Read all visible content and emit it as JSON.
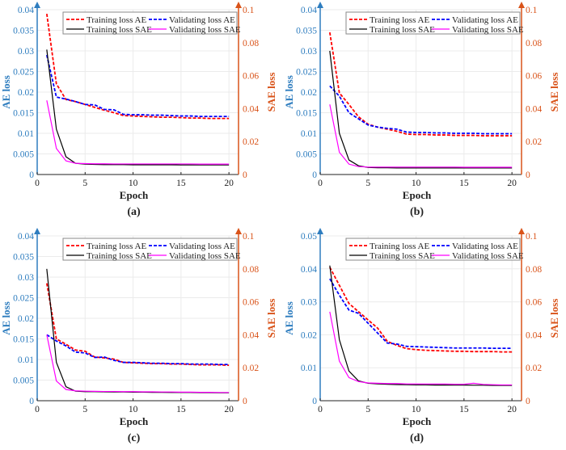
{
  "colors": {
    "left_axis": "#2e7dbf",
    "right_axis": "#d95319",
    "train_ae": "#ff0000",
    "val_ae": "#0000ff",
    "train_sae": "#000000",
    "val_sae": "#ff00ff"
  },
  "chart_data": [
    {
      "type": "line",
      "caption": "(a)",
      "xlabel": "Epoch",
      "ylabel": "AE loss",
      "y2label": "SAE loss",
      "xlim": [
        0,
        21
      ],
      "xticks": [
        "0",
        "5",
        "10",
        "15",
        "20"
      ],
      "ylim": [
        0,
        0.04
      ],
      "yticks": [
        "0",
        "0.005",
        "0.01",
        "0.015",
        "0.02",
        "0.025",
        "0.03",
        "0.035",
        "0.04"
      ],
      "y2lim": [
        0,
        0.1
      ],
      "y2ticks": [
        "0",
        "0.02",
        "0.04",
        "0.06",
        "0.08",
        "0.1"
      ],
      "grid": true,
      "legend_position": "top-right",
      "x": [
        1,
        2,
        3,
        4,
        5,
        6,
        7,
        8,
        9,
        10,
        11,
        12,
        13,
        14,
        15,
        16,
        17,
        18,
        19,
        20
      ],
      "series": [
        {
          "name": "Training loss AE",
          "axis": "left",
          "style": "dashed",
          "values": [
            0.039,
            0.022,
            0.0182,
            0.0177,
            0.017,
            0.0163,
            0.0156,
            0.015,
            0.0143,
            0.0142,
            0.0141,
            0.014,
            0.0139,
            0.0139,
            0.0138,
            0.0137,
            0.0137,
            0.0136,
            0.0136,
            0.0136
          ]
        },
        {
          "name": "Validating loss AE",
          "axis": "left",
          "style": "dashed",
          "values": [
            0.029,
            0.0188,
            0.0183,
            0.0177,
            0.017,
            0.0169,
            0.0158,
            0.0157,
            0.0146,
            0.0145,
            0.0145,
            0.0144,
            0.0144,
            0.0143,
            0.0142,
            0.0142,
            0.0141,
            0.0141,
            0.0141,
            0.0141
          ]
        },
        {
          "name": "Training loss SAE",
          "axis": "right",
          "style": "solid",
          "values": [
            0.0758,
            0.0275,
            0.0108,
            0.0068,
            0.0063,
            0.0061,
            0.006,
            0.006,
            0.006,
            0.0059,
            0.0059,
            0.0059,
            0.0059,
            0.0059,
            0.0058,
            0.0058,
            0.0058,
            0.0058,
            0.0058,
            0.0058
          ]
        },
        {
          "name": "Validating loss SAE",
          "axis": "right",
          "style": "solid",
          "values": [
            0.045,
            0.0158,
            0.0083,
            0.0068,
            0.0066,
            0.0065,
            0.0065,
            0.0064,
            0.0064,
            0.0064,
            0.0064,
            0.0064,
            0.0064,
            0.0064,
            0.0064,
            0.0064,
            0.0063,
            0.0063,
            0.0063,
            0.0063
          ]
        }
      ]
    },
    {
      "type": "line",
      "caption": "(b)",
      "xlabel": "Epoch",
      "ylabel": "AE loss",
      "y2label": "SAE loss",
      "xlim": [
        0,
        21
      ],
      "xticks": [
        "0",
        "5",
        "10",
        "15",
        "20"
      ],
      "ylim": [
        0,
        0.04
      ],
      "yticks": [
        "0",
        "0.005",
        "0.01",
        "0.015",
        "0.02",
        "0.025",
        "0.03",
        "0.035",
        "0.04"
      ],
      "y2lim": [
        0,
        0.1
      ],
      "y2ticks": [
        "0",
        "0.02",
        "0.04",
        "0.06",
        "0.08",
        "0.1"
      ],
      "grid": true,
      "legend_position": "top-right",
      "x": [
        1,
        2,
        3,
        4,
        5,
        6,
        7,
        8,
        9,
        10,
        11,
        12,
        13,
        14,
        15,
        16,
        17,
        18,
        19,
        20
      ],
      "series": [
        {
          "name": "Training loss AE",
          "axis": "left",
          "style": "dashed",
          "values": [
            0.0345,
            0.0198,
            0.017,
            0.014,
            0.0122,
            0.0115,
            0.011,
            0.0105,
            0.0098,
            0.0097,
            0.0097,
            0.0096,
            0.0096,
            0.0095,
            0.0095,
            0.0095,
            0.0094,
            0.0094,
            0.0094,
            0.0094
          ]
        },
        {
          "name": "Validating loss AE",
          "axis": "left",
          "style": "dashed",
          "values": [
            0.0215,
            0.019,
            0.015,
            0.0135,
            0.012,
            0.0115,
            0.0112,
            0.011,
            0.0103,
            0.0102,
            0.0102,
            0.0101,
            0.0101,
            0.01,
            0.01,
            0.01,
            0.0099,
            0.0099,
            0.0099,
            0.0099
          ]
        },
        {
          "name": "Training loss SAE",
          "axis": "right",
          "style": "solid",
          "values": [
            0.075,
            0.025,
            0.0088,
            0.0053,
            0.0043,
            0.0041,
            0.0041,
            0.004,
            0.004,
            0.004,
            0.004,
            0.004,
            0.004,
            0.004,
            0.004,
            0.004,
            0.004,
            0.004,
            0.004,
            0.004
          ]
        },
        {
          "name": "Validating loss SAE",
          "axis": "right",
          "style": "solid",
          "values": [
            0.0425,
            0.0135,
            0.0063,
            0.0048,
            0.0045,
            0.0045,
            0.0045,
            0.0045,
            0.0045,
            0.0045,
            0.0045,
            0.0045,
            0.0045,
            0.0045,
            0.0044,
            0.0044,
            0.0044,
            0.0044,
            0.0044,
            0.0044
          ]
        }
      ]
    },
    {
      "type": "line",
      "caption": "(c)",
      "xlabel": "Epoch",
      "ylabel": "AE loss",
      "y2label": "SAE loss",
      "xlim": [
        0,
        21
      ],
      "xticks": [
        "0",
        "5",
        "10",
        "15",
        "20"
      ],
      "ylim": [
        0,
        0.04
      ],
      "yticks": [
        "0",
        "0.005",
        "0.01",
        "0.015",
        "0.02",
        "0.025",
        "0.03",
        "0.035",
        "0.04"
      ],
      "y2lim": [
        0,
        0.1
      ],
      "y2ticks": [
        "0",
        "0.02",
        "0.04",
        "0.06",
        "0.08",
        "0.1"
      ],
      "grid": true,
      "legend_position": "top-right",
      "x": [
        1,
        2,
        3,
        4,
        5,
        6,
        7,
        8,
        9,
        10,
        11,
        12,
        13,
        14,
        15,
        16,
        17,
        18,
        19,
        20
      ],
      "series": [
        {
          "name": "Training loss AE",
          "axis": "left",
          "style": "dashed",
          "values": [
            0.0285,
            0.015,
            0.0137,
            0.0123,
            0.012,
            0.0106,
            0.0104,
            0.0101,
            0.0093,
            0.0092,
            0.0091,
            0.009,
            0.009,
            0.0089,
            0.0089,
            0.0088,
            0.0087,
            0.0087,
            0.0087,
            0.0086
          ]
        },
        {
          "name": "Validating loss AE",
          "axis": "left",
          "style": "dashed",
          "values": [
            0.016,
            0.0145,
            0.0133,
            0.0118,
            0.0116,
            0.0105,
            0.0106,
            0.0098,
            0.0093,
            0.0093,
            0.0092,
            0.0091,
            0.0091,
            0.009,
            0.009,
            0.0089,
            0.0089,
            0.0089,
            0.0088,
            0.0088
          ]
        },
        {
          "name": "Training loss SAE",
          "axis": "right",
          "style": "solid",
          "values": [
            0.08,
            0.0233,
            0.0085,
            0.0058,
            0.0055,
            0.0055,
            0.0054,
            0.0053,
            0.0053,
            0.0052,
            0.0052,
            0.0051,
            0.0051,
            0.005,
            0.005,
            0.005,
            0.0049,
            0.0049,
            0.0048,
            0.0048
          ]
        },
        {
          "name": "Validating loss SAE",
          "axis": "right",
          "style": "solid",
          "values": [
            0.04,
            0.012,
            0.0068,
            0.006,
            0.0058,
            0.0057,
            0.0056,
            0.0056,
            0.0055,
            0.0055,
            0.0054,
            0.0054,
            0.0053,
            0.0053,
            0.0052,
            0.0052,
            0.0051,
            0.0051,
            0.005,
            0.005
          ]
        }
      ]
    },
    {
      "type": "line",
      "caption": "(d)",
      "xlabel": "Epoch",
      "ylabel": "AE loss",
      "y2label": "SAE loss",
      "xlim": [
        0,
        21
      ],
      "xticks": [
        "0",
        "5",
        "10",
        "15",
        "20"
      ],
      "ylim": [
        0,
        0.05
      ],
      "yticks": [
        "0",
        "0.01",
        "0.02",
        "0.03",
        "0.04",
        "0.05"
      ],
      "y2lim": [
        0,
        0.1
      ],
      "y2ticks": [
        "0",
        "0.02",
        "0.04",
        "0.06",
        "0.08",
        "0.1"
      ],
      "grid": true,
      "legend_position": "top-right",
      "x": [
        1,
        2,
        3,
        4,
        5,
        6,
        7,
        8,
        9,
        10,
        11,
        12,
        13,
        14,
        15,
        16,
        17,
        18,
        19,
        20
      ],
      "series": [
        {
          "name": "Training loss AE",
          "axis": "left",
          "style": "dashed",
          "values": [
            0.0405,
            0.035,
            0.0295,
            0.027,
            0.0245,
            0.022,
            0.018,
            0.0168,
            0.0158,
            0.0155,
            0.0153,
            0.0152,
            0.0151,
            0.015,
            0.015,
            0.0149,
            0.0149,
            0.0149,
            0.0148,
            0.0148
          ]
        },
        {
          "name": "Validating loss AE",
          "axis": "left",
          "style": "dashed",
          "values": [
            0.037,
            0.032,
            0.0275,
            0.0265,
            0.0235,
            0.0205,
            0.0175,
            0.0172,
            0.0165,
            0.0164,
            0.0163,
            0.0162,
            0.0161,
            0.016,
            0.016,
            0.016,
            0.016,
            0.0159,
            0.0159,
            0.0159
          ]
        },
        {
          "name": "Training loss SAE",
          "axis": "right",
          "style": "solid",
          "values": [
            0.082,
            0.037,
            0.018,
            0.012,
            0.0106,
            0.0102,
            0.01,
            0.0098,
            0.0097,
            0.0096,
            0.0096,
            0.0095,
            0.0095,
            0.0095,
            0.0095,
            0.0094,
            0.0094,
            0.0093,
            0.0093,
            0.0093
          ]
        },
        {
          "name": "Validating loss SAE",
          "axis": "right",
          "style": "solid",
          "values": [
            0.054,
            0.024,
            0.014,
            0.0116,
            0.0108,
            0.0106,
            0.0104,
            0.0104,
            0.0102,
            0.0102,
            0.0101,
            0.0101,
            0.0101,
            0.01,
            0.01,
            0.0106,
            0.0099,
            0.0097,
            0.0096,
            0.0096
          ]
        }
      ]
    }
  ]
}
